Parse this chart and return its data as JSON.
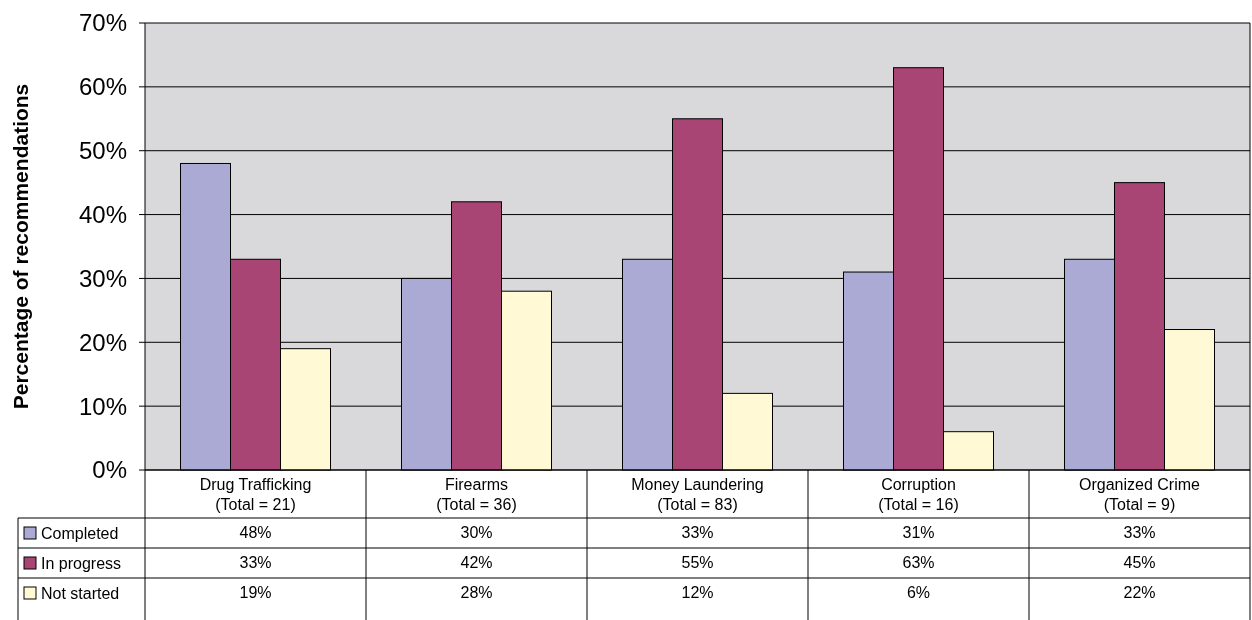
{
  "chart_data": {
    "type": "bar",
    "ylabel": "Percentage of recommendations",
    "categories": [
      "Drug Trafficking\n(Total = 21)",
      "Firearms\n(Total = 36)",
      "Money Laundering\n(Total = 83)",
      "Corruption\n(Total = 16)",
      "Organized Crime\n(Total = 9)"
    ],
    "series": [
      {
        "name": "Completed",
        "color": "#aaaad4",
        "values": [
          48,
          30,
          33,
          31,
          33
        ],
        "value_labels": [
          "48%",
          "30%",
          "33%",
          "31%",
          "33%"
        ]
      },
      {
        "name": "In progress",
        "color": "#a94574",
        "values": [
          33,
          42,
          55,
          63,
          45
        ],
        "value_labels": [
          "33%",
          "42%",
          "55%",
          "63%",
          "45%"
        ]
      },
      {
        "name": "Not started",
        "color": "#fffad5",
        "values": [
          19,
          28,
          12,
          6,
          22
        ],
        "value_labels": [
          "19%",
          "28%",
          "12%",
          "6%",
          "22%"
        ]
      }
    ],
    "ylim": [
      0,
      70
    ],
    "yticks": [
      {
        "value": 0,
        "label": "0%"
      },
      {
        "value": 10,
        "label": "10%"
      },
      {
        "value": 20,
        "label": "20%"
      },
      {
        "value": 30,
        "label": "30%"
      },
      {
        "value": 40,
        "label": "40%"
      },
      {
        "value": 50,
        "label": "50%"
      },
      {
        "value": 60,
        "label": "60%"
      },
      {
        "value": 70,
        "label": "70%"
      }
    ],
    "grid": "y",
    "legend": "bottom"
  }
}
